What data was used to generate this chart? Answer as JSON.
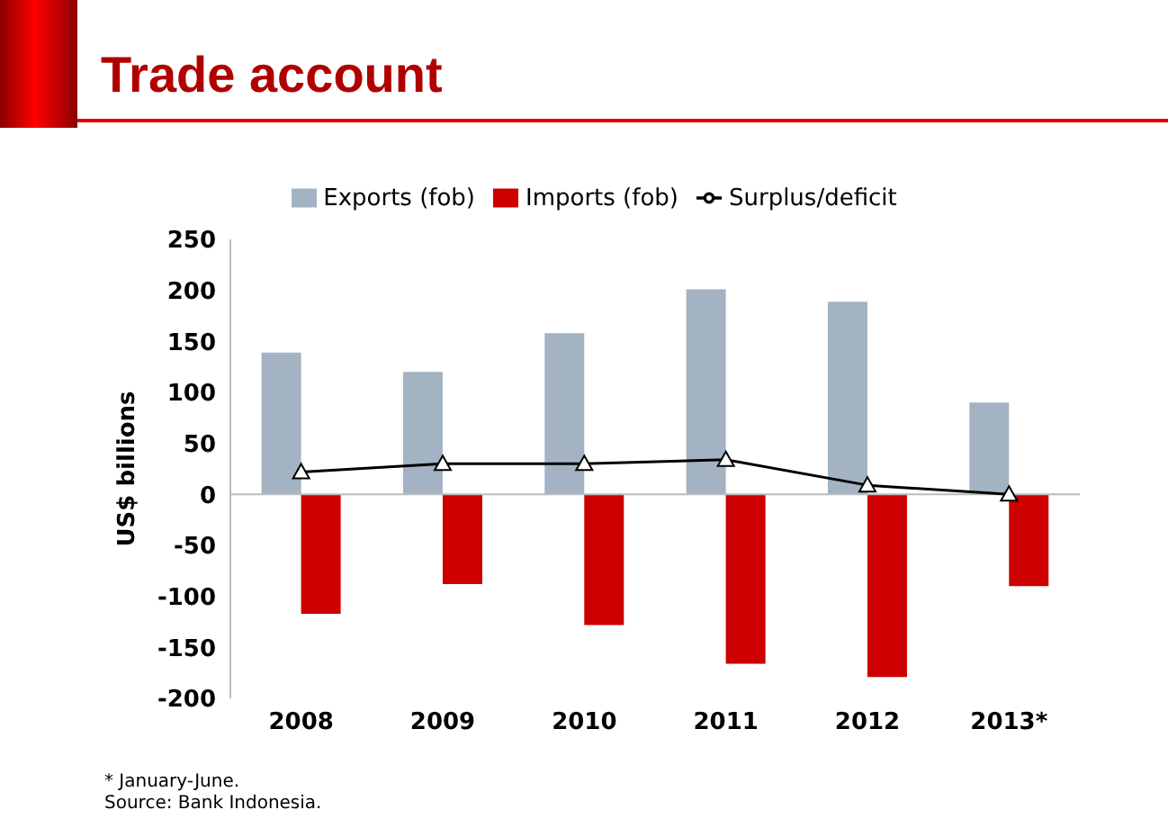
{
  "chart_data": {
    "type": "bar",
    "title": "Trade account",
    "ylabel": "US$ billions",
    "categories": [
      "2008",
      "2009",
      "2010",
      "2011",
      "2012",
      "2013*"
    ],
    "series": [
      {
        "name": "Exports (fob)",
        "color": "#a3b3c3",
        "values": [
          139,
          120,
          158,
          201,
          189,
          90
        ]
      },
      {
        "name": "Imports (fob)",
        "color": "#cc0000",
        "values": [
          -117,
          -88,
          -128,
          -166,
          -179,
          -90
        ]
      },
      {
        "name": "Surplus/deficit",
        "type": "line",
        "color": "#000000",
        "marker": "triangle",
        "values": [
          22,
          30,
          30,
          34,
          9,
          0
        ]
      }
    ],
    "ylim": [
      -200,
      250
    ],
    "yticks": [
      -200,
      -150,
      -100,
      -50,
      0,
      50,
      100,
      150,
      200,
      250
    ],
    "legend": "top",
    "annotations": [
      "* January-June.",
      "Source: Bank Indonesia."
    ]
  }
}
